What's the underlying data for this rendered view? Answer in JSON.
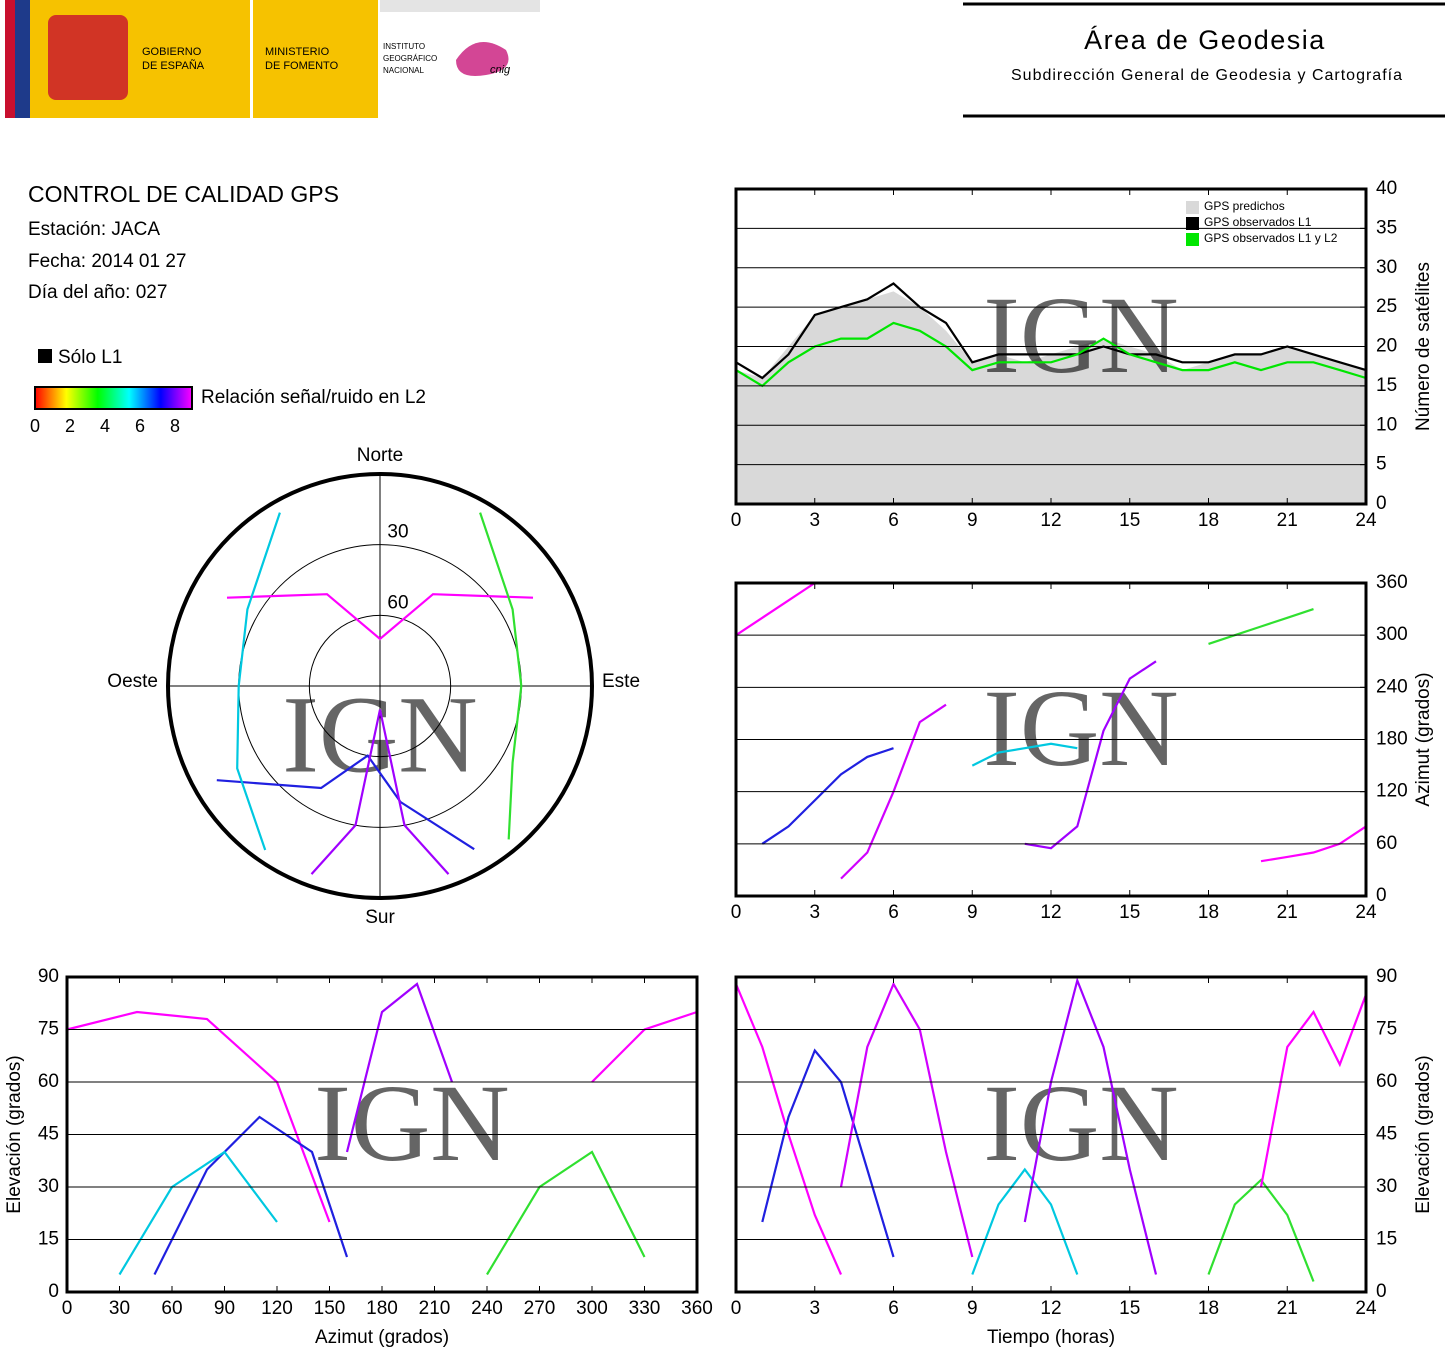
{
  "header": {
    "gobierno": [
      "GOBIERNO",
      "DE ESPAÑA"
    ],
    "ministerio": [
      "MINISTERIO",
      "DE FOMENTO"
    ],
    "instituto": [
      "INSTITUTO",
      "GEOGRÁFICO",
      "NACIONAL"
    ],
    "cnig": "cnig",
    "area": "Área de Geodesia",
    "subdireccion": "Subdirección General de Geodesia y Cartografía"
  },
  "info": {
    "title": "CONTROL DE CALIDAD GPS",
    "lines": [
      "Estación: JACA",
      "Fecha: 2014 01 27",
      "Día del año: 027"
    ],
    "solo_l1": "Sólo L1",
    "snr_label": "Relación señal/ruido en L2",
    "snr_ticks": [
      0,
      2,
      4,
      6,
      8
    ]
  },
  "watermark": "IGN",
  "chart_data": [
    {
      "type": "line",
      "ylabel": "Número de satélites",
      "y_axis_side": "right",
      "x": [
        0,
        1,
        2,
        3,
        4,
        5,
        6,
        7,
        8,
        9,
        10,
        11,
        12,
        13,
        14,
        15,
        16,
        17,
        18,
        19,
        20,
        21,
        22,
        23,
        24
      ],
      "xlim": [
        0,
        24
      ],
      "xticks": [
        0,
        3,
        6,
        9,
        12,
        15,
        18,
        21,
        24
      ],
      "ylim": [
        0,
        40
      ],
      "yticks": [
        0,
        5,
        10,
        15,
        20,
        25,
        30,
        35,
        40
      ],
      "grid": true,
      "legend": "top-right",
      "series": [
        {
          "name": "GPS predichos",
          "color": "#d9d9d9",
          "area": true,
          "values": [
            17,
            16,
            20,
            24,
            25,
            26,
            27,
            25,
            22,
            18,
            19,
            18,
            19,
            20,
            21,
            20,
            19,
            17,
            18,
            19,
            19,
            20,
            19,
            18,
            17
          ]
        },
        {
          "name": "GPS observados L1",
          "color": "#000000",
          "values": [
            18,
            16,
            19,
            24,
            25,
            26,
            28,
            25,
            23,
            18,
            19,
            19,
            19,
            19,
            20,
            19,
            19,
            18,
            18,
            19,
            19,
            20,
            19,
            18,
            17
          ]
        },
        {
          "name": "GPS observados L1 y L2",
          "color": "#00e600",
          "values": [
            17,
            15,
            18,
            20,
            21,
            21,
            23,
            22,
            20,
            17,
            18,
            18,
            18,
            19,
            21,
            19,
            18,
            17,
            17,
            18,
            17,
            18,
            18,
            17,
            16
          ]
        }
      ]
    },
    {
      "type": "polar",
      "directions": {
        "north": "Norte",
        "east": "Este",
        "south": "Sur",
        "west": "Oeste"
      },
      "rlim": [
        90,
        0
      ],
      "rticks": [
        30,
        60
      ],
      "series": [
        {
          "color": "#ff00ff",
          "azimuth": [
            300,
            330,
            0,
            30,
            60
          ],
          "elevation": [
            15,
            45,
            70,
            45,
            15
          ]
        },
        {
          "color": "#2020e0",
          "azimuth": [
            240,
            210,
            190,
            170,
            150
          ],
          "elevation": [
            10,
            40,
            60,
            40,
            10
          ]
        },
        {
          "color": "#00c8e0",
          "azimuth": [
            330,
            300,
            270,
            240,
            215
          ],
          "elevation": [
            5,
            25,
            30,
            20,
            5
          ]
        },
        {
          "color": "#30e030",
          "azimuth": [
            30,
            60,
            90,
            120,
            140
          ],
          "elevation": [
            5,
            25,
            30,
            25,
            5
          ]
        },
        {
          "color": "#a000ff",
          "azimuth": [
            160,
            170,
            180,
            190,
            200
          ],
          "elevation": [
            5,
            30,
            80,
            30,
            5
          ]
        }
      ]
    },
    {
      "type": "line",
      "ylabel": "Azimut (grados)",
      "y_axis_side": "right",
      "xlim": [
        0,
        24
      ],
      "xticks": [
        0,
        3,
        6,
        9,
        12,
        15,
        18,
        21,
        24
      ],
      "ylim": [
        0,
        360
      ],
      "yticks": [
        0,
        60,
        120,
        180,
        240,
        300,
        360
      ],
      "grid": true,
      "series": [
        {
          "color": "#ff00ff",
          "x": [
            0,
            1,
            2,
            3
          ],
          "values": [
            300,
            320,
            340,
            360
          ]
        },
        {
          "color": "#2020e0",
          "x": [
            1,
            2,
            3,
            4,
            5,
            6
          ],
          "values": [
            60,
            80,
            110,
            140,
            160,
            170
          ]
        },
        {
          "color": "#d000ff",
          "x": [
            4,
            5,
            6,
            7,
            8
          ],
          "values": [
            20,
            50,
            120,
            200,
            220
          ]
        },
        {
          "color": "#00c8e0",
          "x": [
            9,
            10,
            11,
            12,
            13
          ],
          "values": [
            150,
            165,
            170,
            175,
            170
          ]
        },
        {
          "color": "#a000ff",
          "x": [
            11,
            12,
            13,
            14,
            15,
            16
          ],
          "values": [
            60,
            55,
            80,
            190,
            250,
            270
          ]
        },
        {
          "color": "#30e030",
          "x": [
            18,
            19,
            20,
            21,
            22
          ],
          "values": [
            290,
            300,
            310,
            320,
            330
          ]
        },
        {
          "color": "#ff00ff",
          "x": [
            20,
            21,
            22,
            23,
            24
          ],
          "values": [
            40,
            45,
            50,
            60,
            80
          ]
        }
      ]
    },
    {
      "type": "line",
      "xlabel": "Azimut (grados)",
      "ylabel": "Elevación (grados)",
      "y_axis_side": "left",
      "xlim": [
        0,
        360
      ],
      "xticks": [
        0,
        30,
        60,
        90,
        120,
        150,
        180,
        210,
        240,
        270,
        300,
        330,
        360
      ],
      "ylim": [
        0,
        90
      ],
      "yticks": [
        0,
        15,
        30,
        45,
        60,
        75,
        90
      ],
      "grid": true,
      "series": [
        {
          "color": "#ff00ff",
          "x": [
            0,
            40,
            80,
            120,
            150
          ],
          "values": [
            75,
            80,
            78,
            60,
            20
          ]
        },
        {
          "color": "#2020e0",
          "x": [
            50,
            80,
            110,
            140,
            160
          ],
          "values": [
            5,
            35,
            50,
            40,
            10
          ]
        },
        {
          "color": "#00c8e0",
          "x": [
            30,
            60,
            90,
            120
          ],
          "values": [
            5,
            30,
            40,
            20
          ]
        },
        {
          "color": "#a000ff",
          "x": [
            160,
            180,
            200,
            220
          ],
          "values": [
            40,
            80,
            88,
            60
          ]
        },
        {
          "color": "#30e030",
          "x": [
            240,
            270,
            300,
            330
          ],
          "values": [
            5,
            30,
            40,
            10
          ]
        },
        {
          "color": "#ff00ff",
          "x": [
            300,
            330,
            360
          ],
          "values": [
            60,
            75,
            80
          ]
        }
      ]
    },
    {
      "type": "line",
      "xlabel": "Tiempo (horas)",
      "ylabel": "Elevación (grados)",
      "y_axis_side": "right",
      "xlim": [
        0,
        24
      ],
      "xticks": [
        0,
        3,
        6,
        9,
        12,
        15,
        18,
        21,
        24
      ],
      "ylim": [
        0,
        90
      ],
      "yticks": [
        0,
        15,
        30,
        45,
        60,
        75,
        90
      ],
      "grid": true,
      "series": [
        {
          "color": "#ff00ff",
          "x": [
            0,
            1,
            2,
            3,
            4
          ],
          "values": [
            88,
            70,
            45,
            22,
            5
          ]
        },
        {
          "color": "#2020e0",
          "x": [
            1,
            2,
            3,
            4,
            5,
            6
          ],
          "values": [
            20,
            50,
            69,
            60,
            35,
            10
          ]
        },
        {
          "color": "#d000ff",
          "x": [
            4,
            5,
            6,
            7,
            8,
            9
          ],
          "values": [
            30,
            70,
            88,
            75,
            40,
            10
          ]
        },
        {
          "color": "#00c8e0",
          "x": [
            9,
            10,
            11,
            12,
            13
          ],
          "values": [
            5,
            25,
            35,
            25,
            5
          ]
        },
        {
          "color": "#a000ff",
          "x": [
            11,
            12,
            13,
            14,
            15,
            16
          ],
          "values": [
            20,
            60,
            89,
            70,
            35,
            5
          ]
        },
        {
          "color": "#30e030",
          "x": [
            18,
            19,
            20,
            21,
            22
          ],
          "values": [
            5,
            25,
            32,
            22,
            3
          ]
        },
        {
          "color": "#ff00ff",
          "x": [
            20,
            21,
            22,
            23,
            24
          ],
          "values": [
            30,
            70,
            80,
            65,
            85
          ]
        }
      ]
    }
  ]
}
